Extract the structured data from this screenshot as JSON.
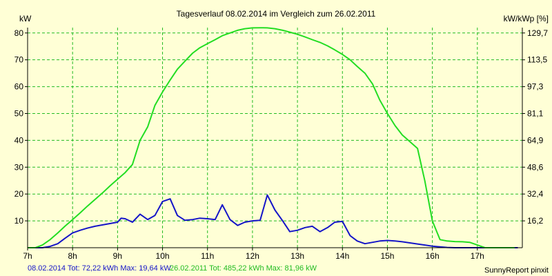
{
  "chart_data": {
    "type": "line",
    "title": "Tagesverlauf 08.02.2014 im Vergleich zum 26.02.2011",
    "ylabel_left": "kW",
    "ylabel_right": "kW/kWp [%]",
    "ylim": [
      0,
      82
    ],
    "yticks_left": [
      {
        "v": 10,
        "label": "10"
      },
      {
        "v": 20,
        "label": "20"
      },
      {
        "v": 30,
        "label": "30"
      },
      {
        "v": 40,
        "label": "40"
      },
      {
        "v": 50,
        "label": "50"
      },
      {
        "v": 60,
        "label": "60"
      },
      {
        "v": 70,
        "label": "70"
      },
      {
        "v": 80,
        "label": "80"
      }
    ],
    "yticks_right": [
      {
        "v": 10,
        "label": "16,2"
      },
      {
        "v": 20,
        "label": "32,4"
      },
      {
        "v": 30,
        "label": "48,6"
      },
      {
        "v": 40,
        "label": "64,9"
      },
      {
        "v": 50,
        "label": "81,1"
      },
      {
        "v": 60,
        "label": "97,3"
      },
      {
        "v": 70,
        "label": "113,5"
      },
      {
        "v": 80,
        "label": "129,7"
      }
    ],
    "xlim": [
      7,
      18
    ],
    "xticks": [
      {
        "v": 7,
        "label": "7h"
      },
      {
        "v": 8,
        "label": "8h"
      },
      {
        "v": 9,
        "label": "9h"
      },
      {
        "v": 10,
        "label": "10h"
      },
      {
        "v": 11,
        "label": "11h"
      },
      {
        "v": 12,
        "label": "12h"
      },
      {
        "v": 13,
        "label": "13h"
      },
      {
        "v": 14,
        "label": "14h"
      },
      {
        "v": 15,
        "label": "15h"
      },
      {
        "v": 16,
        "label": "16h"
      },
      {
        "v": 17,
        "label": "17h"
      }
    ],
    "grid": true,
    "series": [
      {
        "name": "08.02.2014",
        "color": "#1414c8",
        "x": [
          7.0,
          7.17,
          7.33,
          7.5,
          7.67,
          7.83,
          8.0,
          8.17,
          8.33,
          8.5,
          8.67,
          8.83,
          9.0,
          9.08,
          9.17,
          9.33,
          9.5,
          9.67,
          9.83,
          10.0,
          10.17,
          10.33,
          10.5,
          10.67,
          10.83,
          11.0,
          11.17,
          11.33,
          11.5,
          11.67,
          11.83,
          12.0,
          12.17,
          12.33,
          12.5,
          12.67,
          12.83,
          13.0,
          13.17,
          13.33,
          13.5,
          13.67,
          13.83,
          14.0,
          14.17,
          14.33,
          14.5,
          14.67,
          14.83,
          15.0,
          15.17,
          15.33,
          15.5,
          15.67,
          15.83,
          16.0,
          16.17,
          16.33,
          16.5,
          16.67,
          16.83,
          17.0,
          17.5,
          17.9
        ],
        "y": [
          0,
          0,
          0,
          0.5,
          1.5,
          3.5,
          5.5,
          6.5,
          7.3,
          8.0,
          8.5,
          9.0,
          9.5,
          11.0,
          10.8,
          9.5,
          12.5,
          10.5,
          12.0,
          17.2,
          18.2,
          12.0,
          10.2,
          10.5,
          11.0,
          10.8,
          10.5,
          16.0,
          10.5,
          8.3,
          9.5,
          10.0,
          10.2,
          19.64,
          14.0,
          10.0,
          6.0,
          6.5,
          7.5,
          8.0,
          6.0,
          7.5,
          9.5,
          9.8,
          4.5,
          2.5,
          1.5,
          2.0,
          2.5,
          2.7,
          2.5,
          2.2,
          1.8,
          1.4,
          1.0,
          0.6,
          0.3,
          0.1,
          0,
          0,
          0,
          0,
          0,
          0
        ]
      },
      {
        "name": "26.02.2011",
        "color": "#22dd22",
        "x": [
          7.0,
          7.17,
          7.33,
          7.5,
          7.67,
          7.83,
          8.0,
          8.17,
          8.33,
          8.5,
          8.67,
          8.83,
          9.0,
          9.17,
          9.33,
          9.5,
          9.67,
          9.83,
          10.0,
          10.17,
          10.33,
          10.5,
          10.67,
          10.83,
          11.0,
          11.17,
          11.33,
          11.5,
          11.67,
          11.83,
          12.0,
          12.17,
          12.33,
          12.5,
          12.67,
          12.83,
          13.0,
          13.17,
          13.33,
          13.5,
          13.67,
          13.83,
          14.0,
          14.17,
          14.33,
          14.5,
          14.67,
          14.83,
          15.0,
          15.17,
          15.33,
          15.5,
          15.67,
          15.83,
          16.0,
          16.17,
          16.33,
          16.5,
          16.67,
          16.83,
          17.0,
          17.17,
          17.33,
          17.5,
          17.67,
          17.83
        ],
        "y": [
          0,
          0,
          1.0,
          3.0,
          5.5,
          8.0,
          10.5,
          13.0,
          15.5,
          18.0,
          20.5,
          23.0,
          25.5,
          28.0,
          31.0,
          40.0,
          45.0,
          53.0,
          58.0,
          62.5,
          66.5,
          69.5,
          72.5,
          74.5,
          76.0,
          77.5,
          79.0,
          80.0,
          81.0,
          81.6,
          81.9,
          81.96,
          81.9,
          81.6,
          81.0,
          80.3,
          79.5,
          78.5,
          77.5,
          76.5,
          75.2,
          73.7,
          72.0,
          70.0,
          67.5,
          65.0,
          61.0,
          55.0,
          50.0,
          45.5,
          42.0,
          39.5,
          37.0,
          25.0,
          10.0,
          3.0,
          2.5,
          2.3,
          2.2,
          2.0,
          1.0,
          0,
          0,
          0,
          0,
          0
        ]
      }
    ]
  },
  "footer": {
    "series1": "08.02.2014 Tot: 72,22 kWh Max: 19,64 kW",
    "series2": "26.02.2011 Tot: 485,22 kWh Max: 81,96 kW",
    "brand": "SunnyReport pinxit"
  }
}
